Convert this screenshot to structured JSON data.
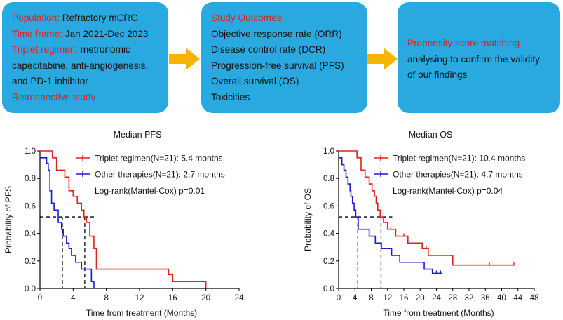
{
  "box1": {
    "population_label": "Population:",
    "population_value": " Refractory mCRC",
    "timeframe_label": "Time frame:",
    "timeframe_value": " Jan 2021-Dec 2023",
    "regimen_label": "Triplet regimen:",
    "regimen_line1": " metronomic",
    "regimen_line2": "capecitabine, anti-angiogenesis,",
    "regimen_line3": "and PD-1 inhibitor",
    "study_type": "Retrospective study"
  },
  "box2": {
    "title": "Study Outcomes:",
    "items": [
      "Objective response rate (ORR)",
      "Disease control rate (DCR)",
      "Progression-free survival (PFS)",
      "Overall survival (OS)",
      "Toxicities"
    ]
  },
  "box3": {
    "title": "Propensity score matching",
    "line1": "analysing to confirm the validity",
    "line2": "of our findings"
  },
  "colors": {
    "box": "#2AA8E0",
    "arrow": "#F5B400",
    "red": "#E0201B",
    "blue": "#1A1AD6"
  },
  "chart_data": [
    {
      "type": "line",
      "title": "Median PFS",
      "xlabel": "Time from treatment (Months)",
      "ylabel": "Probability of PFS",
      "xlim": [
        0,
        24
      ],
      "ylim": [
        0,
        1.0
      ],
      "xticks": [
        "0",
        "4",
        "8",
        "12",
        "16",
        "20",
        "24"
      ],
      "yticks": [
        "0.0",
        "0.2",
        "0.4",
        "0.6",
        "0.8",
        "1.0"
      ],
      "median_line_y": 0.52,
      "annotation": "Log-rank(Mantel-Cox) p=0.01",
      "series": [
        {
          "name": "Triplet regimen(N=21): 5.4 months",
          "color": "red",
          "median": 5.4,
          "steps": [
            [
              0,
              1.0
            ],
            [
              1.5,
              0.95
            ],
            [
              2.0,
              0.86
            ],
            [
              3.0,
              0.81
            ],
            [
              3.5,
              0.71
            ],
            [
              4.0,
              0.67
            ],
            [
              4.5,
              0.62
            ],
            [
              5.0,
              0.57
            ],
            [
              5.3,
              0.52
            ],
            [
              5.6,
              0.48
            ],
            [
              6.0,
              0.38
            ],
            [
              6.5,
              0.29
            ],
            [
              6.8,
              0.14
            ],
            [
              15.5,
              0.1
            ],
            [
              16.0,
              0.05
            ],
            [
              20.0,
              0.0
            ]
          ],
          "censors": []
        },
        {
          "name": "Other therapies(N=21): 2.7 months",
          "color": "blue",
          "median": 2.7,
          "steps": [
            [
              0,
              0.95
            ],
            [
              0.8,
              0.91
            ],
            [
              1.0,
              0.86
            ],
            [
              1.2,
              0.71
            ],
            [
              1.4,
              0.62
            ],
            [
              1.7,
              0.57
            ],
            [
              2.2,
              0.48
            ],
            [
              2.6,
              0.43
            ],
            [
              2.8,
              0.38
            ],
            [
              3.2,
              0.33
            ],
            [
              3.5,
              0.29
            ],
            [
              3.8,
              0.24
            ],
            [
              4.3,
              0.19
            ],
            [
              5.0,
              0.14
            ],
            [
              6.2,
              0.05
            ],
            [
              6.5,
              0.0
            ]
          ],
          "censors": []
        }
      ]
    },
    {
      "type": "line",
      "title": "Median OS",
      "xlabel": "Time from treatment (Months)",
      "ylabel": "Probability of OS",
      "xlim": [
        0,
        48
      ],
      "ylim": [
        0,
        1.0
      ],
      "xticks": [
        "0",
        "4",
        "8",
        "12",
        "16",
        "20",
        "24",
        "28",
        "32",
        "36",
        "40",
        "44",
        "48"
      ],
      "yticks": [
        "0.0",
        "0.2",
        "0.4",
        "0.6",
        "0.8",
        "1.0"
      ],
      "median_line_y": 0.52,
      "annotation": "Log-rank(Mantel-Cox) p=0.04",
      "series": [
        {
          "name": "Triplet regimen(N=21): 10.4 months",
          "color": "red",
          "median": 10.4,
          "steps": [
            [
              0,
              1.0
            ],
            [
              4.5,
              0.95
            ],
            [
              5.5,
              0.86
            ],
            [
              6.5,
              0.81
            ],
            [
              7.5,
              0.76
            ],
            [
              8.2,
              0.71
            ],
            [
              8.8,
              0.67
            ],
            [
              9.2,
              0.62
            ],
            [
              9.6,
              0.57
            ],
            [
              10.2,
              0.52
            ],
            [
              11.0,
              0.48
            ],
            [
              12.0,
              0.43
            ],
            [
              14.0,
              0.38
            ],
            [
              17.0,
              0.33
            ],
            [
              20.5,
              0.29
            ],
            [
              22.0,
              0.24
            ],
            [
              28.0,
              0.17
            ],
            [
              43.0,
              0.17
            ]
          ],
          "censors": [
            [
              12.8,
              0.43
            ],
            [
              16.0,
              0.38
            ],
            [
              21.5,
              0.29
            ],
            [
              37.0,
              0.17
            ],
            [
              43.0,
              0.17
            ]
          ]
        },
        {
          "name": "Other therapies(N=21): 4.7 months",
          "color": "blue",
          "median": 4.7,
          "steps": [
            [
              0,
              0.95
            ],
            [
              0.8,
              0.9
            ],
            [
              1.3,
              0.86
            ],
            [
              1.8,
              0.81
            ],
            [
              2.3,
              0.76
            ],
            [
              2.8,
              0.71
            ],
            [
              3.0,
              0.67
            ],
            [
              3.4,
              0.62
            ],
            [
              3.8,
              0.57
            ],
            [
              4.2,
              0.52
            ],
            [
              4.8,
              0.43
            ],
            [
              7.5,
              0.38
            ],
            [
              9.0,
              0.33
            ],
            [
              10.5,
              0.29
            ],
            [
              13.0,
              0.24
            ],
            [
              15.0,
              0.19
            ],
            [
              21.0,
              0.14
            ],
            [
              23.0,
              0.11
            ],
            [
              25.5,
              0.11
            ]
          ],
          "censors": [
            [
              24.0,
              0.11
            ],
            [
              25.0,
              0.11
            ]
          ]
        }
      ]
    }
  ]
}
